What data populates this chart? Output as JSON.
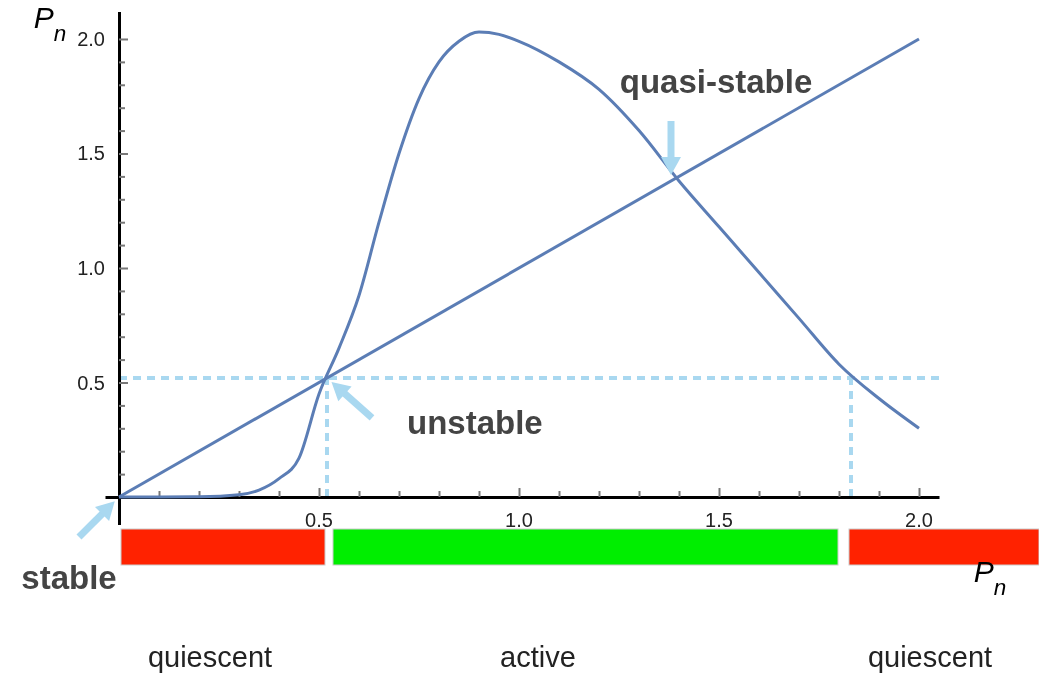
{
  "chart_data": {
    "type": "line",
    "xlabel": "P$_{n}$",
    "ylabel": "P$_{n}$",
    "xlim": [
      -0.035,
      2.05
    ],
    "ylim": [
      -0.12,
      2.12
    ],
    "xticks": [
      {
        "value": 0.1,
        "label": null
      },
      {
        "value": 0.2,
        "label": null
      },
      {
        "value": 0.3,
        "label": null
      },
      {
        "value": 0.4,
        "label": null
      },
      {
        "value": 0.5,
        "label": "0.5"
      },
      {
        "value": 0.6,
        "label": null
      },
      {
        "value": 0.7,
        "label": null
      },
      {
        "value": 0.8,
        "label": null
      },
      {
        "value": 0.9,
        "label": null
      },
      {
        "value": 1.0,
        "label": "1.0"
      },
      {
        "value": 1.1,
        "label": null
      },
      {
        "value": 1.2,
        "label": null
      },
      {
        "value": 1.3,
        "label": null
      },
      {
        "value": 1.4,
        "label": null
      },
      {
        "value": 1.5,
        "label": "1.5"
      },
      {
        "value": 1.6,
        "label": null
      },
      {
        "value": 1.7,
        "label": null
      },
      {
        "value": 1.8,
        "label": null
      },
      {
        "value": 1.9,
        "label": null
      },
      {
        "value": 2.0,
        "label": "2.0"
      }
    ],
    "yticks": [
      {
        "value": 0.1,
        "label": null
      },
      {
        "value": 0.2,
        "label": null
      },
      {
        "value": 0.3,
        "label": null
      },
      {
        "value": 0.4,
        "label": null
      },
      {
        "value": 0.5,
        "label": "0.5"
      },
      {
        "value": 0.6,
        "label": null
      },
      {
        "value": 0.7,
        "label": null
      },
      {
        "value": 0.8,
        "label": null
      },
      {
        "value": 0.9,
        "label": null
      },
      {
        "value": 1.0,
        "label": "1.0"
      },
      {
        "value": 1.1,
        "label": null
      },
      {
        "value": 1.2,
        "label": null
      },
      {
        "value": 1.3,
        "label": null
      },
      {
        "value": 1.4,
        "label": null
      },
      {
        "value": 1.5,
        "label": "1.5"
      },
      {
        "value": 1.6,
        "label": null
      },
      {
        "value": 1.7,
        "label": null
      },
      {
        "value": 1.8,
        "label": null
      },
      {
        "value": 1.9,
        "label": null
      },
      {
        "value": 2.0,
        "label": "2.0"
      }
    ],
    "series": [
      {
        "color": "#5b7db5",
        "x": [
          0,
          0.1,
          0.2,
          0.3,
          0.35,
          0.4,
          0.45,
          0.5,
          0.55,
          0.6,
          0.65,
          0.7,
          0.75,
          0.8,
          0.85,
          0.9,
          0.95,
          1.0,
          1.1,
          1.2,
          1.3,
          1.4,
          1.5,
          1.6,
          1.7,
          1.8,
          1.9,
          2.0
        ],
        "values": [
          0,
          0,
          0.001,
          0.01,
          0.03,
          0.08,
          0.17,
          0.45,
          0.65,
          0.88,
          1.2,
          1.5,
          1.74,
          1.9,
          1.99,
          2.03,
          2.02,
          1.99,
          1.9,
          1.78,
          1.6,
          1.38,
          1.18,
          0.98,
          0.78,
          0.58,
          0.43,
          0.3
        ]
      },
      {
        "color": "#5b7db5",
        "x": [
          0,
          2
        ],
        "values": [
          0,
          2
        ]
      }
    ],
    "ref_lines": [
      {
        "axis": "y",
        "value": 0.52,
        "color": "#a9d8f0",
        "line_style": "dashed"
      },
      {
        "axis": "x",
        "value": 0.52,
        "color": "#a9d8f0",
        "line_style": "dashed"
      },
      {
        "axis": "x",
        "value": 1.83,
        "color": "#a9d8f0",
        "line_style": "dashed"
      }
    ],
    "annotations": [
      {
        "text": "quasi-stable",
        "x": 1.38,
        "y": 1.38
      },
      {
        "text": "unstable",
        "x": 0.52,
        "y": 0.52
      },
      {
        "text": "stable",
        "x": 0,
        "y": 0
      },
      "quiescent",
      "active",
      "quiescent"
    ],
    "marker": "none",
    "line_style": "solid"
  }
}
